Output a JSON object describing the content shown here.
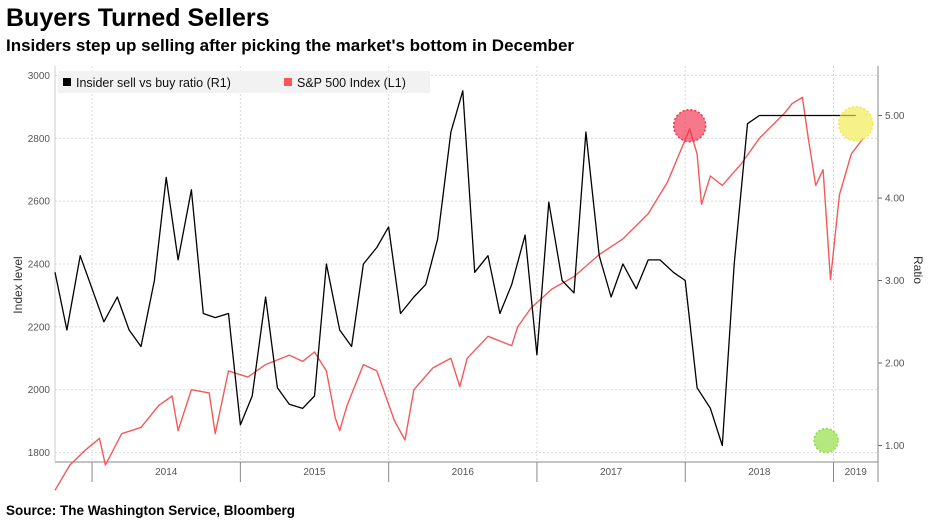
{
  "header": {
    "title": "Buyers Turned Sellers",
    "subtitle": "Insiders step up selling after picking the market's bottom in December"
  },
  "footer": {
    "source": "Source: The Washington Service, Bloomberg"
  },
  "colors": {
    "sp500": "#f25a5a",
    "ratio": "#000000",
    "highlight_red": "#f2304c",
    "highlight_yellow": "#f2e94a",
    "highlight_green": "#8fdc3c",
    "grid": "#d9d9d9"
  },
  "chart_data": {
    "type": "line",
    "legend": {
      "placement": "top-left",
      "entries": [
        "Insider sell vs buy ratio  (R1)",
        "S&P 500 Index  (L1)"
      ]
    },
    "x_axis": {
      "tick_labels": [
        "2014",
        "2015",
        "2016",
        "2017",
        "2018",
        "2019"
      ],
      "range": [
        2013.75,
        2019.3
      ]
    },
    "y_left": {
      "label": "Index level",
      "range": [
        1770,
        3030
      ],
      "ticks": [
        "1800",
        "2000",
        "2200",
        "2400",
        "2600",
        "2800",
        "3000"
      ]
    },
    "y_right": {
      "label": "Ratio",
      "range": [
        0.8,
        5.6
      ],
      "ticks": [
        "1.00",
        "2.00",
        "3.00",
        "4.00",
        "5.00"
      ]
    },
    "grid": true,
    "series": [
      {
        "name": "S&P 500 Index  (L1)",
        "axis": "left",
        "x": [
          2013.75,
          2013.85,
          2013.96,
          2014.05,
          2014.09,
          2014.2,
          2014.33,
          2014.45,
          2014.54,
          2014.58,
          2014.67,
          2014.79,
          2014.83,
          2014.92,
          2015.05,
          2015.17,
          2015.33,
          2015.42,
          2015.5,
          2015.58,
          2015.64,
          2015.67,
          2015.72,
          2015.83,
          2015.92,
          2016.04,
          2016.11,
          2016.17,
          2016.3,
          2016.42,
          2016.48,
          2016.53,
          2016.67,
          2016.83,
          2016.87,
          2016.96,
          2017.1,
          2017.25,
          2017.42,
          2017.58,
          2017.75,
          2017.88,
          2018.03,
          2018.08,
          2018.11,
          2018.17,
          2018.25,
          2018.38,
          2018.5,
          2018.67,
          2018.72,
          2018.79,
          2018.83,
          2018.88,
          2018.93,
          2018.98,
          2019.04,
          2019.12,
          2019.2
        ],
        "values": [
          1680,
          1760,
          1810,
          1845,
          1760,
          1860,
          1880,
          1950,
          1980,
          1870,
          2000,
          1990,
          1860,
          2060,
          2040,
          2080,
          2110,
          2090,
          2120,
          2060,
          1910,
          1870,
          1950,
          2080,
          2060,
          1900,
          1840,
          2000,
          2070,
          2100,
          2010,
          2100,
          2170,
          2140,
          2200,
          2260,
          2320,
          2360,
          2430,
          2480,
          2560,
          2660,
          2830,
          2750,
          2590,
          2680,
          2650,
          2720,
          2800,
          2880,
          2910,
          2930,
          2800,
          2650,
          2700,
          2350,
          2620,
          2750,
          2800
        ]
      },
      {
        "name": "Insider sell vs buy ratio  (R1)",
        "axis": "right",
        "x": [
          2013.75,
          2013.83,
          2013.92,
          2014.0,
          2014.08,
          2014.17,
          2014.25,
          2014.33,
          2014.42,
          2014.5,
          2014.58,
          2014.67,
          2014.75,
          2014.83,
          2014.92,
          2015.0,
          2015.08,
          2015.17,
          2015.25,
          2015.33,
          2015.42,
          2015.5,
          2015.58,
          2015.67,
          2015.75,
          2015.83,
          2015.92,
          2016.0,
          2016.08,
          2016.17,
          2016.25,
          2016.33,
          2016.42,
          2016.5,
          2016.58,
          2016.67,
          2016.75,
          2016.83,
          2016.92,
          2017.0,
          2017.08,
          2017.17,
          2017.25,
          2017.33,
          2017.42,
          2017.5,
          2017.58,
          2017.67,
          2017.75,
          2017.83,
          2017.92,
          2018.0,
          2018.08,
          2018.17,
          2018.25,
          2018.33,
          2018.42,
          2018.5,
          2018.58,
          2018.67,
          2018.75,
          2018.83,
          2018.92,
          2019.0,
          2019.08,
          2019.15
        ],
        "values": [
          3.1,
          2.4,
          3.3,
          2.9,
          2.5,
          2.8,
          2.4,
          2.2,
          3.0,
          4.25,
          3.25,
          4.1,
          2.6,
          2.55,
          2.6,
          1.25,
          1.6,
          2.8,
          1.7,
          1.5,
          1.45,
          1.6,
          3.2,
          2.4,
          2.2,
          3.2,
          3.4,
          3.65,
          2.6,
          2.8,
          2.95,
          3.5,
          4.8,
          5.3,
          3.1,
          3.3,
          2.6,
          2.95,
          3.55,
          2.1,
          3.95,
          3.0,
          2.85,
          4.8,
          3.3,
          2.8,
          3.2,
          2.9,
          3.25,
          3.25,
          3.1,
          3.0,
          1.7,
          1.45,
          1.0,
          3.2,
          4.9,
          5.0,
          5.0,
          5.0,
          5.0,
          5.0,
          5.0,
          5.0,
          5.0,
          5.0
        ]
      }
    ],
    "highlights": [
      {
        "color": "red",
        "x": 2018.03,
        "axis": "left",
        "value": 2840
      },
      {
        "color": "yellow",
        "x": 2019.15,
        "axis": "right",
        "value": 4.9
      },
      {
        "color": "green",
        "x": 2018.95,
        "axis": "right",
        "value": 1.06
      }
    ]
  }
}
